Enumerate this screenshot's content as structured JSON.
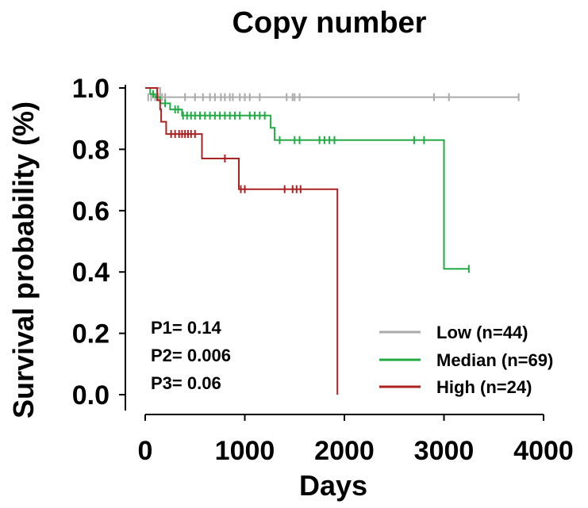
{
  "chart_data": {
    "type": "line",
    "subtype": "kaplan-meier",
    "title": "Copy number",
    "xlabel": "Days",
    "ylabel": "Survival probability (%)",
    "xlim": [
      0,
      4000
    ],
    "ylim": [
      0,
      1.0
    ],
    "x_ticks": [
      0,
      1000,
      2000,
      3000,
      4000
    ],
    "x_tick_labels": [
      "0",
      "1000",
      "2000",
      "3000",
      "4000"
    ],
    "y_ticks": [
      0,
      0.2,
      0.4,
      0.6,
      0.8,
      1.0
    ],
    "y_tick_labels": [
      "0.0",
      "0.2",
      "0.4",
      "0.6",
      "0.8",
      "1.0"
    ],
    "grid": false,
    "legend_position": "bottom-right",
    "annotations": [
      "P1= 0.14",
      "P2= 0.006",
      "P3= 0.06"
    ],
    "series": [
      {
        "name": "Low (n=44)",
        "color": "#aaaaaa",
        "steps": [
          [
            0,
            1.0
          ],
          [
            150,
            1.0
          ],
          [
            150,
            0.97
          ],
          [
            3750,
            0.97
          ]
        ],
        "censor_x": [
          30,
          60,
          100,
          130,
          170,
          200,
          400,
          500,
          580,
          650,
          700,
          760,
          800,
          850,
          880,
          950,
          1000,
          1050,
          1150,
          1420,
          1480,
          1500,
          1550,
          2900,
          3050,
          3750
        ],
        "censor_y": 0.97
      },
      {
        "name": "Median (n=69)",
        "color": "#22aa44",
        "steps": [
          [
            0,
            1.0
          ],
          [
            50,
            1.0
          ],
          [
            50,
            0.98
          ],
          [
            100,
            0.98
          ],
          [
            100,
            0.97
          ],
          [
            150,
            0.97
          ],
          [
            150,
            0.95
          ],
          [
            250,
            0.95
          ],
          [
            250,
            0.93
          ],
          [
            370,
            0.93
          ],
          [
            370,
            0.91
          ],
          [
            1260,
            0.91
          ],
          [
            1260,
            0.87
          ],
          [
            1300,
            0.87
          ],
          [
            1300,
            0.83
          ],
          [
            3000,
            0.83
          ],
          [
            3000,
            0.41
          ],
          [
            3250,
            0.41
          ]
        ],
        "censor_x": [
          80,
          200,
          300,
          330,
          380,
          420,
          460,
          500,
          550,
          600,
          650,
          700,
          750,
          800,
          850,
          900,
          950,
          1050,
          1100,
          1150,
          1200,
          1350,
          1500,
          1550,
          1750,
          1800,
          1850,
          1900,
          2700,
          2800,
          3250
        ],
        "censor_y_by_x": "step value at x"
      },
      {
        "name": "High (n=24)",
        "color": "#aa2222",
        "steps": [
          [
            0,
            1.0
          ],
          [
            120,
            1.0
          ],
          [
            120,
            0.96
          ],
          [
            150,
            0.96
          ],
          [
            150,
            0.93
          ],
          [
            160,
            0.93
          ],
          [
            160,
            0.89
          ],
          [
            210,
            0.89
          ],
          [
            210,
            0.85
          ],
          [
            570,
            0.85
          ],
          [
            570,
            0.77
          ],
          [
            940,
            0.77
          ],
          [
            940,
            0.67
          ],
          [
            1930,
            0.67
          ],
          [
            1930,
            0.0
          ]
        ],
        "censor_x": [
          260,
          300,
          340,
          370,
          400,
          430,
          460,
          500,
          800,
          960,
          1000,
          1400,
          1480,
          1520,
          1560
        ],
        "censor_y_by_x": "step value at x"
      }
    ]
  }
}
